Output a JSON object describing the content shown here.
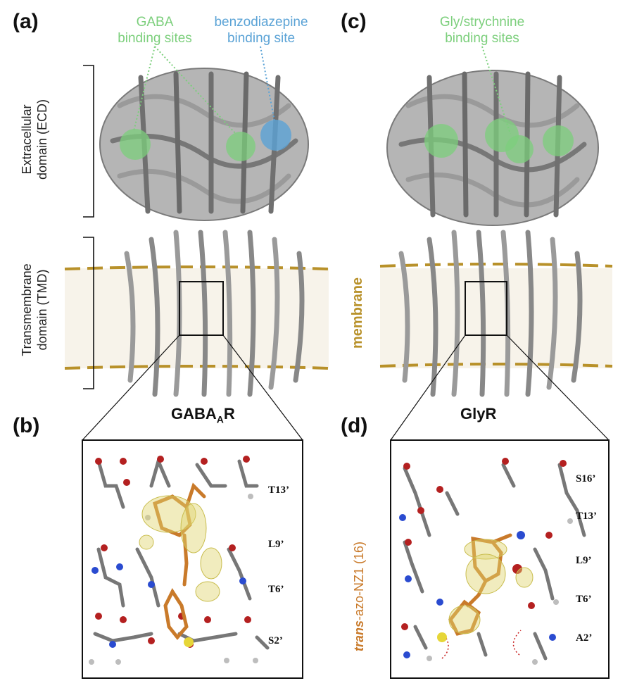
{
  "panels": {
    "a": {
      "label": "(a)",
      "title_main": "GABA",
      "title_sub": "A",
      "title_end": "R"
    },
    "b": {
      "label": "(b)"
    },
    "c": {
      "label": "(c)",
      "title": "GlyR"
    },
    "d": {
      "label": "(d)"
    }
  },
  "annotations": {
    "gaba_sites": [
      "GABA",
      "binding sites"
    ],
    "bzd_site": [
      "benzodiazepine",
      "binding site"
    ],
    "gly_sites": [
      "Gly/strychnine",
      "binding sites"
    ],
    "ecd": [
      "Extracellular",
      "domain (ECD)"
    ],
    "tmd": [
      "Transmembrane",
      "domain (TMD)"
    ],
    "membrane": "membrane"
  },
  "residues_b": [
    "T13’",
    "L9’",
    "T6’",
    "S2’"
  ],
  "residues_d": [
    "S16’",
    "T13’",
    "L9’",
    "T6’",
    "A2’"
  ],
  "ligand": {
    "italic": "trans",
    "rest": "-azo-NZ1 (16)"
  },
  "colors": {
    "green": "#7ccf7c",
    "blue": "#5ba3d6",
    "membrane": "#b8912a",
    "ligand": "#c97a2a",
    "protein": "#8c8c8c"
  }
}
